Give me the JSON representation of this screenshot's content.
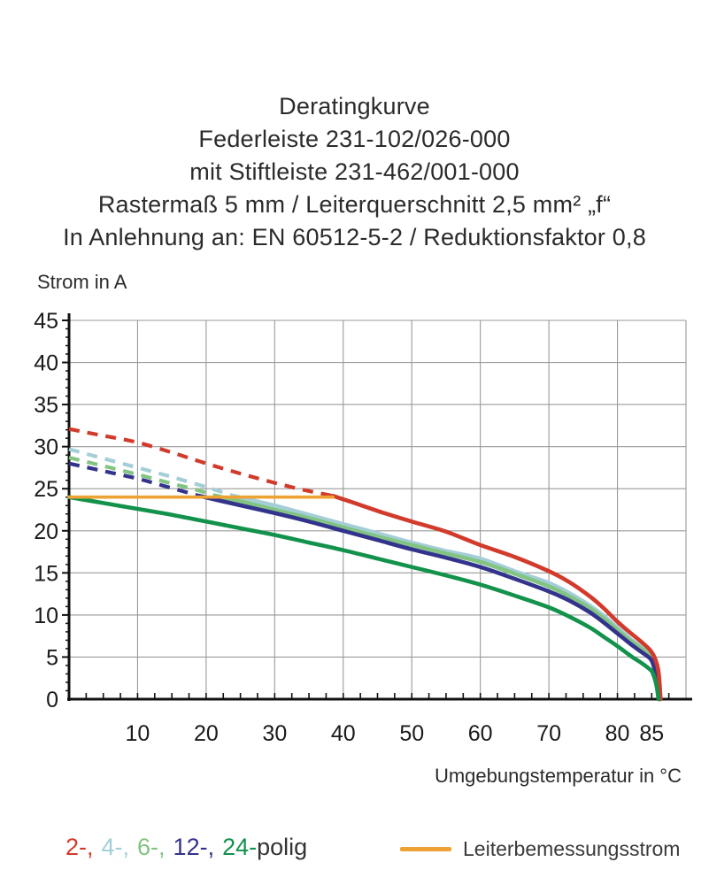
{
  "title": {
    "lines": [
      "Deratingkurve",
      "Federleiste 231-102/026-000",
      "mit Stiftleiste 231-462/001-000",
      "Rastermaß 5 mm / Leiterquerschnitt 2,5 mm² „f“",
      "In Anlehnung an: EN 60512-5-2 / Reduktionsfaktor 0,8"
    ]
  },
  "chart_data": {
    "type": "line",
    "title": "Deratingkurve",
    "xlabel": "Umgebungstemperatur in °C",
    "ylabel": "Strom in A",
    "xlim": [
      0,
      90
    ],
    "ylim": [
      0,
      45
    ],
    "grid": true,
    "x_grid_step": 10,
    "y_grid_step": 5,
    "x_minor_tick_step": 2.5,
    "y_minor_tick_step": 1,
    "x_tick_labels": [
      10,
      20,
      30,
      40,
      50,
      60,
      70,
      80,
      85
    ],
    "y_tick_labels": [
      0,
      5,
      10,
      15,
      20,
      25,
      30,
      35,
      40,
      45
    ],
    "grid_color": "#9a9a9a",
    "axis_color": "#111111",
    "rated_current": {
      "label": "Leiterbemessungsstrom",
      "value_a": 24,
      "x_start": 0,
      "x_end": 38.5,
      "color": "#eea233"
    },
    "series": [
      {
        "name": "4-polig",
        "color": "#a4ced7",
        "dashed_points": [
          [
            0,
            29.7
          ],
          [
            5,
            28.6
          ],
          [
            10,
            27.5
          ],
          [
            15,
            26.4
          ],
          [
            20,
            25.2
          ],
          [
            24,
            24.15
          ]
        ],
        "solid_points": [
          [
            24,
            24.15
          ],
          [
            30,
            23.0
          ],
          [
            35,
            21.9
          ],
          [
            40,
            20.8
          ],
          [
            45,
            19.7
          ],
          [
            50,
            18.6
          ],
          [
            55,
            17.6
          ],
          [
            60,
            16.7
          ],
          [
            65,
            15.2
          ],
          [
            70,
            13.8
          ],
          [
            73,
            12.6
          ],
          [
            76,
            11.1
          ],
          [
            78,
            9.9
          ],
          [
            80,
            8.5
          ],
          [
            82,
            7.1
          ],
          [
            83.5,
            6.2
          ],
          [
            84.8,
            5.3
          ],
          [
            85.4,
            4.4
          ],
          [
            85.9,
            2.8
          ],
          [
            86.2,
            0
          ]
        ]
      },
      {
        "name": "6-polig",
        "color": "#82c482",
        "dashed_points": [
          [
            0,
            28.7
          ],
          [
            5,
            27.7
          ],
          [
            10,
            26.7
          ],
          [
            15,
            25.6
          ],
          [
            18,
            25.0
          ],
          [
            21.5,
            24.15
          ]
        ],
        "solid_points": [
          [
            21.5,
            24.15
          ],
          [
            26,
            23.3
          ],
          [
            30,
            22.5
          ],
          [
            35,
            21.5
          ],
          [
            40,
            20.4
          ],
          [
            45,
            19.3
          ],
          [
            50,
            18.3
          ],
          [
            55,
            17.3
          ],
          [
            60,
            16.3
          ],
          [
            65,
            14.9
          ],
          [
            70,
            13.4
          ],
          [
            73,
            12.2
          ],
          [
            76,
            10.8
          ],
          [
            78,
            9.6
          ],
          [
            80,
            8.2
          ],
          [
            82,
            6.9
          ],
          [
            83.5,
            6.0
          ],
          [
            84.8,
            5.1
          ],
          [
            85.4,
            4.2
          ],
          [
            85.9,
            2.6
          ],
          [
            86.15,
            0
          ]
        ]
      },
      {
        "name": "12-polig",
        "color": "#33338d",
        "dashed_points": [
          [
            0,
            28.0
          ],
          [
            5,
            27.1
          ],
          [
            10,
            26.2
          ],
          [
            14,
            25.3
          ],
          [
            19,
            24.15
          ]
        ],
        "solid_points": [
          [
            19,
            24.15
          ],
          [
            24,
            23.2
          ],
          [
            30,
            22.1
          ],
          [
            35,
            21.1
          ],
          [
            40,
            20.0
          ],
          [
            45,
            18.9
          ],
          [
            50,
            17.8
          ],
          [
            55,
            16.8
          ],
          [
            60,
            15.7
          ],
          [
            65,
            14.3
          ],
          [
            70,
            12.8
          ],
          [
            73,
            11.7
          ],
          [
            76,
            10.3
          ],
          [
            78,
            9.1
          ],
          [
            80,
            7.8
          ],
          [
            82,
            6.5
          ],
          [
            83.5,
            5.6
          ],
          [
            84.8,
            4.8
          ],
          [
            85.3,
            3.9
          ],
          [
            85.8,
            2.3
          ],
          [
            86.1,
            0
          ]
        ]
      },
      {
        "name": "2-polig",
        "color": "#d23b2c",
        "dashed_points": [
          [
            0,
            32.1
          ],
          [
            5,
            31.3
          ],
          [
            10,
            30.5
          ],
          [
            15,
            29.3
          ],
          [
            20,
            28.0
          ],
          [
            25,
            26.8
          ],
          [
            30,
            25.7
          ],
          [
            34,
            24.9
          ],
          [
            38.5,
            24.15
          ]
        ],
        "solid_points": [
          [
            38.5,
            24.15
          ],
          [
            42,
            23.2
          ],
          [
            46,
            22.1
          ],
          [
            50,
            21.1
          ],
          [
            55,
            19.9
          ],
          [
            60,
            18.3
          ],
          [
            65,
            16.9
          ],
          [
            70,
            15.2
          ],
          [
            73,
            13.9
          ],
          [
            76,
            12.2
          ],
          [
            78,
            10.8
          ],
          [
            80,
            9.2
          ],
          [
            82,
            7.8
          ],
          [
            83.5,
            6.8
          ],
          [
            84.8,
            5.8
          ],
          [
            85.5,
            4.8
          ],
          [
            86,
            3.2
          ],
          [
            86.3,
            0
          ]
        ]
      },
      {
        "name": "24-polig",
        "color": "#12924b",
        "dashed_points": [],
        "solid_points": [
          [
            0,
            24.0
          ],
          [
            5,
            23.3
          ],
          [
            10,
            22.6
          ],
          [
            15,
            21.9
          ],
          [
            20,
            21.1
          ],
          [
            25,
            20.3
          ],
          [
            30,
            19.5
          ],
          [
            35,
            18.6
          ],
          [
            40,
            17.7
          ],
          [
            45,
            16.7
          ],
          [
            50,
            15.7
          ],
          [
            55,
            14.7
          ],
          [
            60,
            13.6
          ],
          [
            65,
            12.3
          ],
          [
            70,
            10.9
          ],
          [
            73,
            9.8
          ],
          [
            76,
            8.5
          ],
          [
            78,
            7.4
          ],
          [
            80,
            6.3
          ],
          [
            82,
            5.1
          ],
          [
            83.5,
            4.3
          ],
          [
            84.8,
            3.5
          ],
          [
            85.2,
            3.0
          ],
          [
            85.7,
            1.6
          ],
          [
            86,
            0
          ]
        ]
      }
    ]
  },
  "legend": {
    "poles": [
      {
        "text": "2-,",
        "color": "#d23b2c"
      },
      {
        "text": "4-,",
        "color": "#a4ced7"
      },
      {
        "text": "6-,",
        "color": "#82c482"
      },
      {
        "text": "12-,",
        "color": "#33338d"
      },
      {
        "text": "24-",
        "color": "#12924b"
      }
    ],
    "poles_suffix": "polig",
    "rated_current_label": "Leiterbemessungsstrom",
    "rated_current_color": "#eea233"
  }
}
